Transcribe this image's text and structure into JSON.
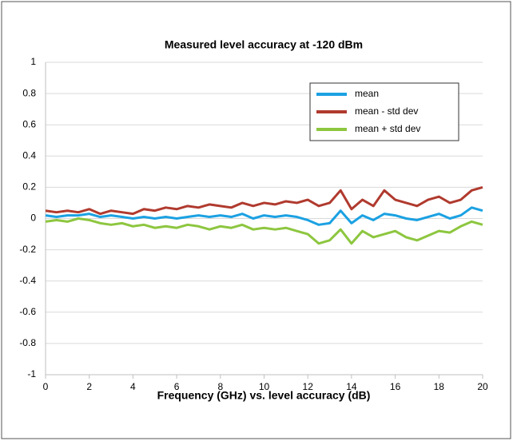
{
  "chart_data": {
    "type": "line",
    "title": "Measured level accuracy  at -120 dBm",
    "x_label": "Frequency (GHz) vs. level accuracy (dB)",
    "x": [
      0,
      0.5,
      1,
      1.5,
      2,
      2.5,
      3,
      3.5,
      4,
      4.5,
      5,
      5.5,
      6,
      6.5,
      7,
      7.5,
      8,
      8.5,
      9,
      9.5,
      10,
      10.5,
      11,
      11.5,
      12,
      12.5,
      13,
      13.5,
      14,
      14.5,
      15,
      15.5,
      16,
      16.5,
      17,
      17.5,
      18,
      18.5,
      19,
      19.5,
      20
    ],
    "series": [
      {
        "name": "mean",
        "color": "#1ba1e2",
        "values": [
          0.02,
          0.01,
          0.02,
          0.02,
          0.03,
          0.01,
          0.02,
          0.01,
          0.0,
          0.01,
          0.0,
          0.01,
          0.0,
          0.01,
          0.02,
          0.01,
          0.02,
          0.01,
          0.03,
          0.0,
          0.02,
          0.01,
          0.02,
          0.01,
          -0.01,
          -0.04,
          -0.03,
          0.05,
          -0.03,
          0.02,
          -0.01,
          0.03,
          0.02,
          0.0,
          -0.01,
          0.01,
          0.03,
          0.0,
          0.02,
          0.07,
          0.05
        ]
      },
      {
        "name": "mean - std dev",
        "color": "#b03a2e",
        "values": [
          0.05,
          0.04,
          0.05,
          0.04,
          0.06,
          0.03,
          0.05,
          0.04,
          0.03,
          0.06,
          0.05,
          0.07,
          0.06,
          0.08,
          0.07,
          0.09,
          0.08,
          0.07,
          0.1,
          0.08,
          0.1,
          0.09,
          0.11,
          0.1,
          0.12,
          0.08,
          0.1,
          0.18,
          0.06,
          0.12,
          0.08,
          0.18,
          0.12,
          0.1,
          0.08,
          0.12,
          0.14,
          0.1,
          0.12,
          0.18,
          0.2
        ]
      },
      {
        "name": "mean + std dev",
        "color": "#8dc63f",
        "values": [
          -0.02,
          -0.01,
          -0.02,
          0.0,
          -0.01,
          -0.03,
          -0.04,
          -0.03,
          -0.05,
          -0.04,
          -0.06,
          -0.05,
          -0.06,
          -0.04,
          -0.05,
          -0.07,
          -0.05,
          -0.06,
          -0.04,
          -0.07,
          -0.06,
          -0.07,
          -0.06,
          -0.08,
          -0.1,
          -0.16,
          -0.14,
          -0.07,
          -0.16,
          -0.08,
          -0.12,
          -0.1,
          -0.08,
          -0.12,
          -0.14,
          -0.11,
          -0.08,
          -0.09,
          -0.05,
          -0.02,
          -0.04
        ]
      }
    ],
    "xlim": [
      0,
      20
    ],
    "xticks": [
      0,
      2,
      4,
      6,
      8,
      10,
      12,
      14,
      16,
      18,
      20
    ],
    "ylim": [
      -1,
      1
    ],
    "yticks": [
      -1,
      -0.8,
      -0.6,
      -0.4,
      -0.2,
      0,
      0.2,
      0.4,
      0.6,
      0.8,
      1
    ],
    "grid": true,
    "legend": "upper right"
  }
}
